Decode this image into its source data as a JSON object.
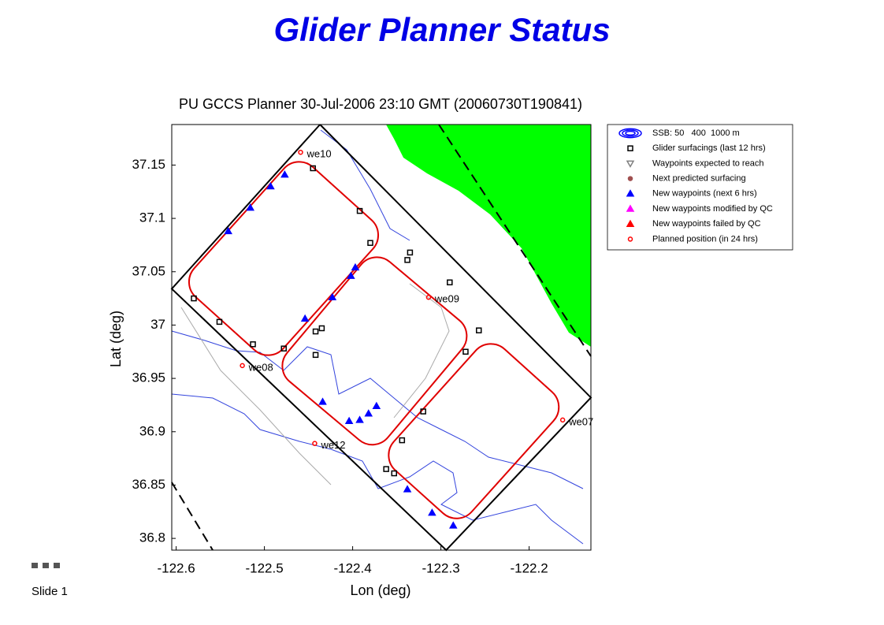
{
  "slide_title": "Glider Planner Status",
  "footer": "Slide 1",
  "chart_data": {
    "type": "scatter",
    "title": "PU GCCS Planner 30-Jul-2006 23:10 GMT (20060730T190841)",
    "xlabel": "Lon (deg)",
    "ylabel": "Lat (deg)",
    "xlim": [
      -122.605,
      -122.13
    ],
    "ylim": [
      36.789,
      37.188
    ],
    "xticks": [
      -122.6,
      -122.5,
      -122.4,
      -122.3,
      -122.2
    ],
    "yticks": [
      36.8,
      36.85,
      36.9,
      36.95,
      37,
      37.05,
      37.1,
      37.15
    ],
    "boundary": {
      "x": [
        -122.437,
        -122.13,
        -122.294,
        -122.605,
        -122.437
      ],
      "y": [
        37.188,
        36.932,
        36.789,
        37.034,
        37.188
      ]
    },
    "series": [
      {
        "name": "Glider surfacings (last 12 hrs)",
        "marker": "square",
        "color": "#000000",
        "x": [
          -122.58,
          -122.551,
          -122.513,
          -122.478,
          -122.442,
          -122.435,
          -122.442,
          -122.392,
          -122.445,
          -122.38,
          -122.335,
          -122.338,
          -122.29,
          -122.257,
          -122.272,
          -122.32,
          -122.344,
          -122.362,
          -122.353
        ],
        "y": [
          37.025,
          37.003,
          36.982,
          36.978,
          36.994,
          36.997,
          36.972,
          37.107,
          37.147,
          37.077,
          37.068,
          37.061,
          37.04,
          36.995,
          36.975,
          36.919,
          36.892,
          36.865,
          36.861
        ]
      },
      {
        "name": "New waypoints (next 6 hrs)",
        "marker": "triangle",
        "color": "#0000ff",
        "x": [
          -122.541,
          -122.516,
          -122.493,
          -122.477,
          -122.454,
          -122.423,
          -122.402,
          -122.397,
          -122.434,
          -122.404,
          -122.392,
          -122.382,
          -122.373,
          -122.338,
          -122.31,
          -122.286
        ],
        "y": [
          37.088,
          37.11,
          37.13,
          37.141,
          37.006,
          37.026,
          37.046,
          37.054,
          36.928,
          36.91,
          36.911,
          36.917,
          36.924,
          36.846,
          36.824,
          36.812
        ]
      },
      {
        "name": "Planned position (in 24 hrs)",
        "marker": "circle",
        "color": "#ff0000",
        "x": [
          -122.459,
          -122.314,
          -122.525,
          -122.443,
          -122.162
        ],
        "y": [
          37.162,
          37.026,
          36.962,
          36.889,
          36.911
        ],
        "labels": [
          "we10",
          "we09",
          "we08",
          "we12",
          "we07"
        ]
      }
    ],
    "legend": [
      {
        "name": "SSB: 50   400  1000 m",
        "marker": "ellipse",
        "color": "#0000ff"
      },
      {
        "name": "Glider surfacings (last 12 hrs)",
        "marker": "square",
        "color": "#000000"
      },
      {
        "name": "Waypoints expected to reach",
        "marker": "tri-down",
        "color": "#808080"
      },
      {
        "name": "Next predicted surfacing",
        "marker": "star",
        "color": "#a05050"
      },
      {
        "name": "New waypoints (next 6 hrs)",
        "marker": "triangle",
        "color": "#0000ff"
      },
      {
        "name": "New waypoints modified by QC",
        "marker": "triangle",
        "color": "#ff00ff"
      },
      {
        "name": "New waypoints failed by QC",
        "marker": "triangle",
        "color": "#ff0000"
      },
      {
        "name": "Planned position (in 24 hrs)",
        "marker": "circle",
        "color": "#ff0000"
      }
    ]
  }
}
